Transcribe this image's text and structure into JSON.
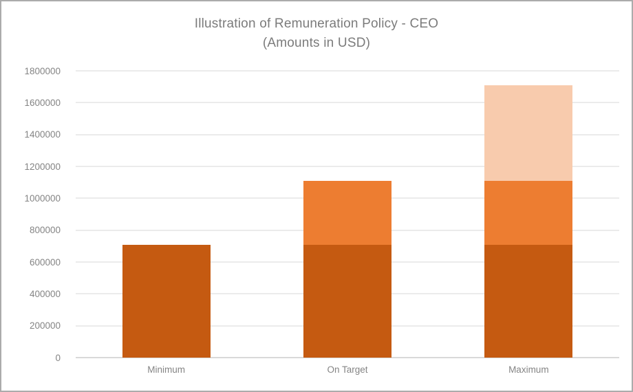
{
  "window": {
    "background_color": "#ffffff",
    "border_color": "#ababab"
  },
  "chart": {
    "title_line1": "Illustration of Remuneration Policy - CEO",
    "title_line2": "(Amounts in USD)",
    "title_color": "#7b7b7b",
    "axis_text_color": "#848484",
    "gridline_color": "#ebebeb",
    "axis_line_color": "#d9d9d9"
  },
  "chart_data": {
    "type": "bar",
    "stacked": true,
    "title": "Illustration of Remuneration Policy - CEO (Amounts in USD)",
    "categories": [
      "Minimum",
      "On Target",
      "Maximum"
    ],
    "series": [
      {
        "name": "segment-dark-orange",
        "color": "#C55A11",
        "values": [
          710000,
          710000,
          710000
        ]
      },
      {
        "name": "segment-orange",
        "color": "#ED7D31",
        "values": [
          0,
          400000,
          400000
        ]
      },
      {
        "name": "segment-light-orange",
        "color": "#F8CBAD",
        "values": [
          0,
          0,
          600000
        ]
      }
    ],
    "totals": [
      710000,
      1110000,
      1710000
    ],
    "values_estimated_from_gridlines": true,
    "ylim": [
      0,
      1800000
    ],
    "ytick_interval": 200000,
    "ytick_labels": [
      "0",
      "200000",
      "400000",
      "600000",
      "800000",
      "1000000",
      "1200000",
      "1400000",
      "1600000",
      "1800000"
    ],
    "xlabel": "",
    "ylabel": "",
    "legend": "none",
    "grid": true
  }
}
